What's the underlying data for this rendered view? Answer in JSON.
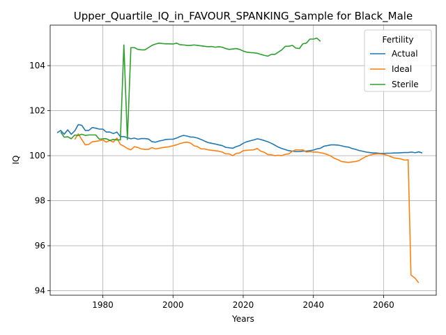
{
  "chart_data": {
    "type": "line",
    "title": "Upper_Quartile_IQ_in_FAVOUR_SPANKING_Sample for Black_Male",
    "xlabel": "Years",
    "ylabel": "IQ",
    "xlim": [
      1965,
      2075
    ],
    "ylim": [
      93.8,
      105.8
    ],
    "xticks": [
      1980,
      2000,
      2020,
      2040,
      2060
    ],
    "yticks": [
      94,
      96,
      98,
      100,
      102,
      104
    ],
    "grid": true,
    "legend": {
      "title": "Fertility",
      "placement": "top-right"
    },
    "series": [
      {
        "name": "Actual",
        "color": "#1f77b4",
        "points": [
          [
            1967,
            101.02
          ],
          [
            1968,
            101.12
          ],
          [
            1969,
            100.95
          ],
          [
            1970,
            101.15
          ],
          [
            1971,
            100.95
          ],
          [
            1972,
            101.1
          ],
          [
            1973,
            101.38
          ],
          [
            1974,
            101.35
          ],
          [
            1975,
            101.12
          ],
          [
            1976,
            101.12
          ],
          [
            1977,
            101.25
          ],
          [
            1978,
            101.22
          ],
          [
            1979,
            101.18
          ],
          [
            1980,
            101.18
          ],
          [
            1981,
            101.05
          ],
          [
            1982,
            101.05
          ],
          [
            1983,
            100.98
          ],
          [
            1984,
            101.05
          ],
          [
            1985,
            100.85
          ],
          [
            1986,
            100.85
          ],
          [
            1987,
            100.8
          ],
          [
            1988,
            100.75
          ],
          [
            1989,
            100.78
          ],
          [
            1990,
            100.73
          ],
          [
            1991,
            100.76
          ],
          [
            1992,
            100.76
          ],
          [
            1993,
            100.74
          ],
          [
            1994,
            100.62
          ],
          [
            1995,
            100.6
          ],
          [
            1996,
            100.65
          ],
          [
            1997,
            100.68
          ],
          [
            1998,
            100.72
          ],
          [
            1999,
            100.73
          ],
          [
            2000,
            100.73
          ],
          [
            2001,
            100.78
          ],
          [
            2002,
            100.85
          ],
          [
            2003,
            100.9
          ],
          [
            2004,
            100.87
          ],
          [
            2005,
            100.83
          ],
          [
            2006,
            100.82
          ],
          [
            2007,
            100.78
          ],
          [
            2008,
            100.72
          ],
          [
            2009,
            100.65
          ],
          [
            2010,
            100.58
          ],
          [
            2011,
            100.55
          ],
          [
            2012,
            100.52
          ],
          [
            2013,
            100.48
          ],
          [
            2014,
            100.45
          ],
          [
            2015,
            100.37
          ],
          [
            2016,
            100.35
          ],
          [
            2017,
            100.33
          ],
          [
            2018,
            100.4
          ],
          [
            2019,
            100.45
          ],
          [
            2020,
            100.55
          ],
          [
            2021,
            100.62
          ],
          [
            2022,
            100.66
          ],
          [
            2023,
            100.7
          ],
          [
            2024,
            100.75
          ],
          [
            2025,
            100.72
          ],
          [
            2026,
            100.67
          ],
          [
            2027,
            100.62
          ],
          [
            2028,
            100.55
          ],
          [
            2029,
            100.47
          ],
          [
            2030,
            100.38
          ],
          [
            2031,
            100.32
          ],
          [
            2032,
            100.27
          ],
          [
            2033,
            100.22
          ],
          [
            2034,
            100.2
          ],
          [
            2035,
            100.18
          ],
          [
            2036,
            100.18
          ],
          [
            2037,
            100.2
          ],
          [
            2038,
            100.2
          ],
          [
            2039,
            100.22
          ],
          [
            2040,
            100.25
          ],
          [
            2041,
            100.3
          ],
          [
            2042,
            100.33
          ],
          [
            2043,
            100.42
          ],
          [
            2044,
            100.45
          ],
          [
            2045,
            100.48
          ],
          [
            2046,
            100.48
          ],
          [
            2047,
            100.47
          ],
          [
            2048,
            100.44
          ],
          [
            2049,
            100.4
          ],
          [
            2050,
            100.38
          ],
          [
            2051,
            100.32
          ],
          [
            2052,
            100.28
          ],
          [
            2053,
            100.23
          ],
          [
            2054,
            100.2
          ],
          [
            2055,
            100.16
          ],
          [
            2056,
            100.14
          ],
          [
            2057,
            100.12
          ],
          [
            2058,
            100.12
          ],
          [
            2059,
            100.1
          ],
          [
            2060,
            100.1
          ],
          [
            2061,
            100.11
          ],
          [
            2062,
            100.11
          ],
          [
            2063,
            100.12
          ],
          [
            2064,
            100.12
          ],
          [
            2065,
            100.13
          ],
          [
            2066,
            100.14
          ],
          [
            2067,
            100.14
          ],
          [
            2068,
            100.16
          ],
          [
            2069,
            100.13
          ],
          [
            2070,
            100.17
          ],
          [
            2071,
            100.12
          ]
        ]
      },
      {
        "name": "Ideal",
        "color": "#ff7f0e",
        "points": [
          [
            1972,
            100.72
          ],
          [
            1973,
            100.97
          ],
          [
            1974,
            100.72
          ],
          [
            1975,
            100.48
          ],
          [
            1976,
            100.5
          ],
          [
            1977,
            100.62
          ],
          [
            1978,
            100.64
          ],
          [
            1979,
            100.66
          ],
          [
            1980,
            100.7
          ],
          [
            1981,
            100.6
          ],
          [
            1982,
            100.68
          ],
          [
            1983,
            100.6
          ],
          [
            1984,
            100.78
          ],
          [
            1985,
            100.5
          ],
          [
            1986,
            100.42
          ],
          [
            1987,
            100.32
          ],
          [
            1988,
            100.26
          ],
          [
            1989,
            100.4
          ],
          [
            1990,
            100.36
          ],
          [
            1991,
            100.3
          ],
          [
            1992,
            100.28
          ],
          [
            1993,
            100.28
          ],
          [
            1994,
            100.36
          ],
          [
            1995,
            100.3
          ],
          [
            1996,
            100.33
          ],
          [
            1997,
            100.36
          ],
          [
            1998,
            100.38
          ],
          [
            1999,
            100.4
          ],
          [
            2000,
            100.44
          ],
          [
            2001,
            100.48
          ],
          [
            2002,
            100.54
          ],
          [
            2003,
            100.58
          ],
          [
            2004,
            100.6
          ],
          [
            2005,
            100.56
          ],
          [
            2006,
            100.44
          ],
          [
            2007,
            100.4
          ],
          [
            2008,
            100.3
          ],
          [
            2009,
            100.3
          ],
          [
            2010,
            100.26
          ],
          [
            2011,
            100.24
          ],
          [
            2012,
            100.22
          ],
          [
            2013,
            100.2
          ],
          [
            2014,
            100.16
          ],
          [
            2015,
            100.08
          ],
          [
            2016,
            100.08
          ],
          [
            2017,
            100.0
          ],
          [
            2018,
            100.1
          ],
          [
            2019,
            100.12
          ],
          [
            2020,
            100.22
          ],
          [
            2021,
            100.24
          ],
          [
            2022,
            100.25
          ],
          [
            2023,
            100.26
          ],
          [
            2024,
            100.32
          ],
          [
            2025,
            100.2
          ],
          [
            2026,
            100.15
          ],
          [
            2027,
            100.05
          ],
          [
            2028,
            100.04
          ],
          [
            2029,
            100.0
          ],
          [
            2030,
            100.02
          ],
          [
            2031,
            100.0
          ],
          [
            2032,
            100.06
          ],
          [
            2033,
            100.08
          ],
          [
            2034,
            100.2
          ],
          [
            2035,
            100.26
          ],
          [
            2036,
            100.25
          ],
          [
            2037,
            100.26
          ],
          [
            2038,
            100.16
          ],
          [
            2039,
            100.18
          ],
          [
            2040,
            100.16
          ],
          [
            2041,
            100.16
          ],
          [
            2042,
            100.13
          ],
          [
            2043,
            100.1
          ],
          [
            2044,
            100.05
          ],
          [
            2045,
            99.98
          ],
          [
            2046,
            99.88
          ],
          [
            2047,
            99.82
          ],
          [
            2048,
            99.74
          ],
          [
            2049,
            99.72
          ],
          [
            2050,
            99.7
          ],
          [
            2051,
            99.72
          ],
          [
            2052,
            99.74
          ],
          [
            2053,
            99.78
          ],
          [
            2054,
            99.88
          ],
          [
            2055,
            99.96
          ],
          [
            2056,
            100.02
          ],
          [
            2057,
            100.06
          ],
          [
            2058,
            100.08
          ],
          [
            2059,
            100.08
          ],
          [
            2060,
            100.06
          ],
          [
            2061,
            100.02
          ],
          [
            2062,
            99.96
          ],
          [
            2063,
            99.9
          ],
          [
            2064,
            99.88
          ],
          [
            2065,
            99.85
          ],
          [
            2066,
            99.8
          ],
          [
            2067,
            99.82
          ],
          [
            2067.8,
            94.7
          ],
          [
            2069,
            94.55
          ],
          [
            2070,
            94.35
          ]
        ]
      },
      {
        "name": "Sterile",
        "color": "#2ca02c",
        "points": [
          [
            1968,
            101.05
          ],
          [
            1969,
            100.82
          ],
          [
            1970,
            100.84
          ],
          [
            1971,
            100.75
          ],
          [
            1972,
            100.92
          ],
          [
            1973,
            100.9
          ],
          [
            1974,
            100.95
          ],
          [
            1975,
            100.9
          ],
          [
            1976,
            100.92
          ],
          [
            1977,
            100.92
          ],
          [
            1978,
            100.92
          ],
          [
            1979,
            100.73
          ],
          [
            1980,
            100.75
          ],
          [
            1981,
            100.75
          ],
          [
            1982,
            100.68
          ],
          [
            1983,
            100.72
          ],
          [
            1984,
            100.7
          ],
          [
            1985,
            100.7
          ],
          [
            1986,
            104.92
          ],
          [
            1987,
            100.72
          ],
          [
            1988,
            104.8
          ],
          [
            1989,
            104.8
          ],
          [
            1990,
            104.72
          ],
          [
            1991,
            104.7
          ],
          [
            1992,
            104.7
          ],
          [
            1993,
            104.8
          ],
          [
            1994,
            104.9
          ],
          [
            1995,
            104.96
          ],
          [
            1996,
            105.0
          ],
          [
            1997,
            104.98
          ],
          [
            1998,
            104.97
          ],
          [
            1999,
            104.97
          ],
          [
            2000,
            104.96
          ],
          [
            2001,
            105.0
          ],
          [
            2002,
            104.93
          ],
          [
            2003,
            104.92
          ],
          [
            2004,
            104.9
          ],
          [
            2005,
            104.9
          ],
          [
            2006,
            104.92
          ],
          [
            2007,
            104.9
          ],
          [
            2008,
            104.88
          ],
          [
            2009,
            104.86
          ],
          [
            2010,
            104.84
          ],
          [
            2011,
            104.85
          ],
          [
            2012,
            104.82
          ],
          [
            2013,
            104.84
          ],
          [
            2014,
            104.82
          ],
          [
            2015,
            104.76
          ],
          [
            2016,
            104.72
          ],
          [
            2017,
            104.74
          ],
          [
            2018,
            104.76
          ],
          [
            2019,
            104.72
          ],
          [
            2020,
            104.65
          ],
          [
            2021,
            104.6
          ],
          [
            2022,
            104.58
          ],
          [
            2023,
            104.57
          ],
          [
            2024,
            104.55
          ],
          [
            2025,
            104.5
          ],
          [
            2026,
            104.46
          ],
          [
            2027,
            104.42
          ],
          [
            2028,
            104.5
          ],
          [
            2029,
            104.5
          ],
          [
            2030,
            104.6
          ],
          [
            2031,
            104.7
          ],
          [
            2032,
            104.86
          ],
          [
            2033,
            104.86
          ],
          [
            2034,
            104.9
          ],
          [
            2035,
            104.78
          ],
          [
            2036,
            104.76
          ],
          [
            2037,
            104.97
          ],
          [
            2038,
            105.0
          ],
          [
            2039,
            105.18
          ],
          [
            2040,
            105.18
          ],
          [
            2041,
            105.22
          ],
          [
            2042,
            105.08
          ]
        ]
      }
    ]
  }
}
